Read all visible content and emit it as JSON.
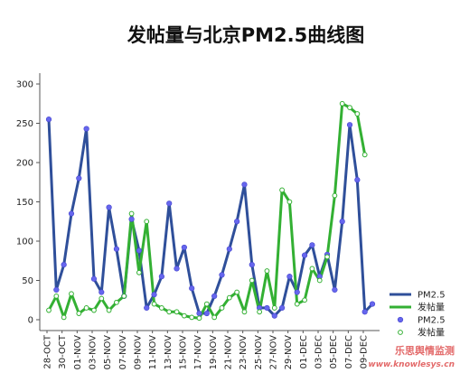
{
  "chart_data": {
    "type": "line",
    "title": "发帖量与北京PM2.5曲线图",
    "xlabel": "",
    "ylabel": "",
    "ylim": [
      0,
      300
    ],
    "yticks": [
      0,
      50,
      100,
      150,
      200,
      250,
      300
    ],
    "tick_labels": [
      "28-OCT",
      "30-OCT",
      "01-NOV",
      "03-NOV",
      "05-NOV",
      "07-NOV",
      "09-NOV",
      "11-NOV",
      "13-NOV",
      "15-NOV",
      "17-NOV",
      "19-NOV",
      "21-NOV",
      "23-NOV",
      "25-NOV",
      "27-NOV",
      "29-NOV",
      "01-DEC",
      "03-DEC",
      "05-DEC",
      "07-DEC",
      "09-DEC"
    ],
    "grid": false,
    "legend_position": "bottom-right",
    "series": [
      {
        "name": "PM2.5",
        "color": "#2f4f9a",
        "marker_color": "#6666ee",
        "values": [
          255,
          38,
          70,
          135,
          180,
          243,
          52,
          35,
          143,
          90,
          30,
          128,
          88,
          15,
          32,
          55,
          148,
          65,
          92,
          40,
          8,
          8,
          30,
          57,
          90,
          125,
          172,
          70,
          15,
          15,
          5,
          15,
          55,
          35,
          82,
          95,
          55,
          83,
          38,
          125,
          248,
          178,
          10,
          20
        ]
      },
      {
        "name": "发帖量",
        "color": "#33b033",
        "marker_color": "#33b033",
        "values": [
          12,
          30,
          3,
          33,
          8,
          15,
          12,
          27,
          12,
          22,
          30,
          135,
          60,
          125,
          20,
          15,
          10,
          10,
          5,
          3,
          2,
          20,
          3,
          15,
          28,
          35,
          10,
          50,
          10,
          62,
          15,
          165,
          150,
          20,
          25,
          65,
          50,
          80,
          158,
          275,
          270,
          262,
          210
        ]
      }
    ]
  },
  "watermark": {
    "text": "乐思舆情监测",
    "url": "www.knowlesys.cn"
  }
}
